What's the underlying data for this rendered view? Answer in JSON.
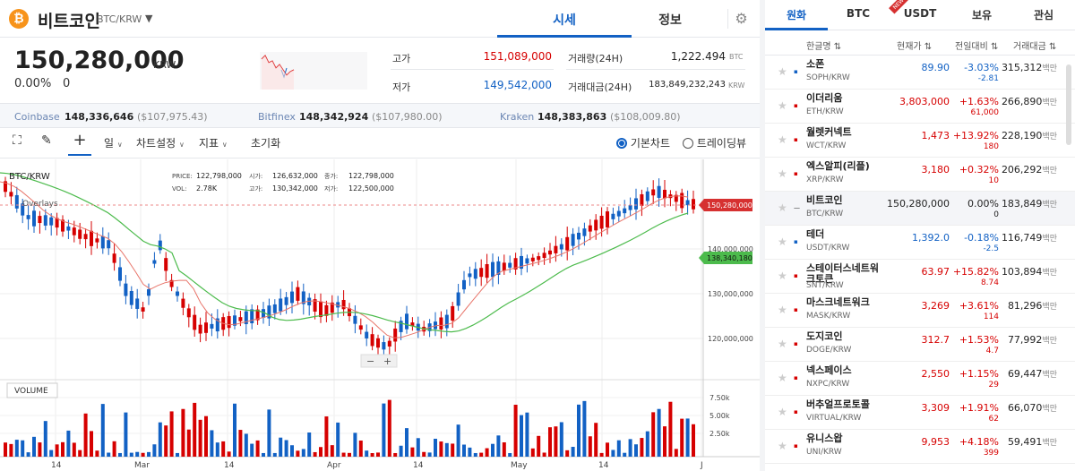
{
  "coin": {
    "name": "비트코인",
    "pair": "BTC/KRW",
    "logo": "₿"
  },
  "tabs": {
    "price": "시세",
    "info": "정보"
  },
  "ticker": {
    "price": "150,280,000",
    "unit": "KRW",
    "change_pct": "0.00%",
    "change_val": "0",
    "high_label": "고가",
    "high": "151,089,000",
    "low_label": "저가",
    "low": "149,542,000",
    "vol_label": "거래량(24H)",
    "vol": "1,222.494",
    "vol_unit": "BTC",
    "amt_label": "거래대금(24H)",
    "amt": "183,849,232,243",
    "amt_unit": "KRW"
  },
  "exchanges": [
    {
      "name": "Coinbase",
      "krw": "148,336,646",
      "usd": "($107,975.43)"
    },
    {
      "name": "Bitfinex",
      "krw": "148,342,924",
      "usd": "($107,980.00)"
    },
    {
      "name": "Kraken",
      "krw": "148,383,863",
      "usd": "($108,009.80)"
    }
  ],
  "toolbar": {
    "interval": "일",
    "chart_settings": "차트설정",
    "indicators": "지표",
    "reset": "초기화",
    "basic_chart": "기본차트",
    "tradingview": "트레이딩뷰"
  },
  "chart": {
    "symbol": "BTC/KRW",
    "overlays": "Overlays",
    "volume_label": "VOLUME",
    "info": {
      "price_label": "PRICE:",
      "price": "122,798,000",
      "open_label": "시가:",
      "open": "126,632,000",
      "close_label": "종가:",
      "close": "122,798,000",
      "vol_label": "VOL:",
      "vol": "2.78K",
      "high_label": "고가:",
      "high": "130,342,000",
      "low_label": "저가:",
      "low": "122,500,000"
    },
    "current_price_tag": "150,280,000",
    "ma_tag": "138,340,180",
    "y_ticks": [
      "140,000,000",
      "130,000,000",
      "120,000,000"
    ],
    "vol_ticks": [
      "7.50k",
      "5.00k",
      "2.50k"
    ],
    "x_ticks": [
      "14",
      "Mar",
      "14",
      "Apr",
      "14",
      "May",
      "14",
      "J"
    ],
    "colors": {
      "up": "#d60000",
      "down": "#1261c4",
      "ma_short": "#e8756a",
      "ma_long": "#4cbb4c"
    }
  },
  "market": {
    "tabs": [
      "원화",
      "BTC",
      "USDT",
      "보유",
      "관심"
    ],
    "usdt_badge": "NEW",
    "headers": {
      "name": "한글명 ⇅",
      "price": "현재가 ⇅",
      "change": "전일대비 ⇅",
      "volume": "거래대금 ⇅"
    },
    "volume_unit": "백만",
    "rows": [
      {
        "name": "소폰",
        "symbol": "SOPH/KRW",
        "price": "89.90",
        "pct": "-3.03%",
        "chg": "-2.81",
        "vol": "315,312",
        "dir": "down",
        "selected": false
      },
      {
        "name": "이더리움",
        "symbol": "ETH/KRW",
        "price": "3,803,000",
        "pct": "+1.63%",
        "chg": "61,000",
        "vol": "266,890",
        "dir": "up",
        "selected": false
      },
      {
        "name": "월렛커넥트",
        "symbol": "WCT/KRW",
        "price": "1,473",
        "pct": "+13.92%",
        "chg": "180",
        "vol": "228,190",
        "dir": "up",
        "selected": false
      },
      {
        "name": "엑스알피(리플)",
        "symbol": "XRP/KRW",
        "price": "3,180",
        "pct": "+0.32%",
        "chg": "10",
        "vol": "206,292",
        "dir": "up",
        "selected": false
      },
      {
        "name": "비트코인",
        "symbol": "BTC/KRW",
        "price": "150,280,000",
        "pct": "0.00%",
        "chg": "0",
        "vol": "183,849",
        "dir": "flat",
        "selected": true
      },
      {
        "name": "테더",
        "symbol": "USDT/KRW",
        "price": "1,392.0",
        "pct": "-0.18%",
        "chg": "-2.5",
        "vol": "116,749",
        "dir": "down",
        "selected": false
      },
      {
        "name": "스테이터스네트워크토큰",
        "symbol": "SNT/KRW",
        "price": "63.97",
        "pct": "+15.82%",
        "chg": "8.74",
        "vol": "103,894",
        "dir": "up",
        "selected": false
      },
      {
        "name": "마스크네트워크",
        "symbol": "MASK/KRW",
        "price": "3,269",
        "pct": "+3.61%",
        "chg": "114",
        "vol": "81,296",
        "dir": "up",
        "selected": false
      },
      {
        "name": "도지코인",
        "symbol": "DOGE/KRW",
        "price": "312.7",
        "pct": "+1.53%",
        "chg": "4.7",
        "vol": "77,992",
        "dir": "up",
        "selected": false
      },
      {
        "name": "넥스페이스",
        "symbol": "NXPC/KRW",
        "price": "2,550",
        "pct": "+1.15%",
        "chg": "29",
        "vol": "69,447",
        "dir": "up",
        "selected": false
      },
      {
        "name": "버추얼프로토콜",
        "symbol": "VIRTUAL/KRW",
        "price": "3,309",
        "pct": "+1.91%",
        "chg": "62",
        "vol": "66,070",
        "dir": "up",
        "selected": false
      },
      {
        "name": "유니스왑",
        "symbol": "UNI/KRW",
        "price": "9,953",
        "pct": "+4.18%",
        "chg": "399",
        "vol": "59,491",
        "dir": "up",
        "selected": false
      }
    ]
  }
}
